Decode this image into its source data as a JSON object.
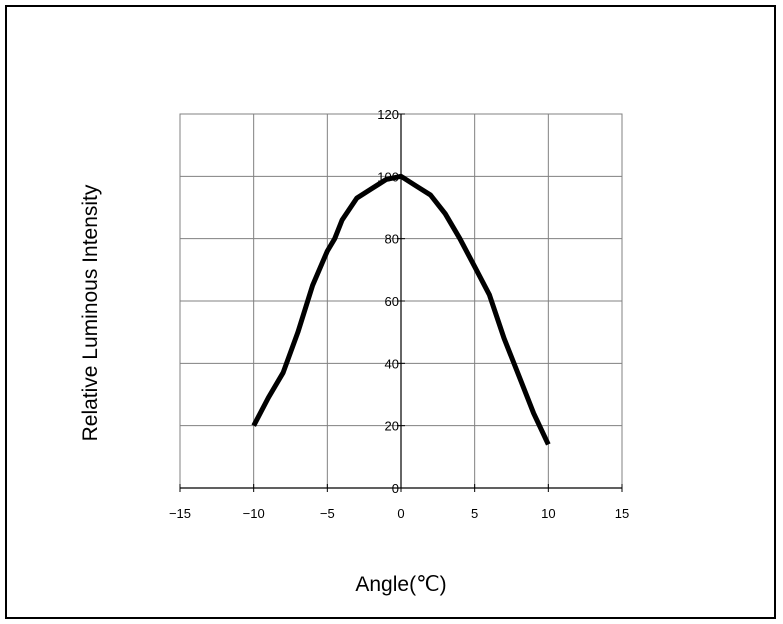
{
  "chart_data": {
    "type": "line",
    "title": "",
    "xlabel": "Angle(℃)",
    "ylabel": "Relative Luminous Intensity",
    "xlim": [
      -15,
      15
    ],
    "ylim": [
      0,
      120
    ],
    "x_ticks": [
      -15,
      -10,
      -5,
      0,
      5,
      10,
      15
    ],
    "y_ticks": [
      0,
      20,
      40,
      60,
      80,
      100,
      120
    ],
    "grid": true,
    "legend": "none",
    "series": [
      {
        "color": "#000000",
        "x": [
          -10,
          -9,
          -8,
          -7,
          -6,
          -5,
          -4.5,
          -4,
          -3,
          -2,
          -1,
          0,
          1,
          2,
          3,
          4,
          5,
          6,
          7,
          8,
          9,
          10
        ],
        "y": [
          20,
          29,
          37,
          50,
          65,
          76,
          80,
          86,
          93,
          96,
          99,
          100,
          97,
          94,
          88,
          80,
          71,
          62,
          48,
          36,
          24,
          14
        ]
      }
    ]
  }
}
